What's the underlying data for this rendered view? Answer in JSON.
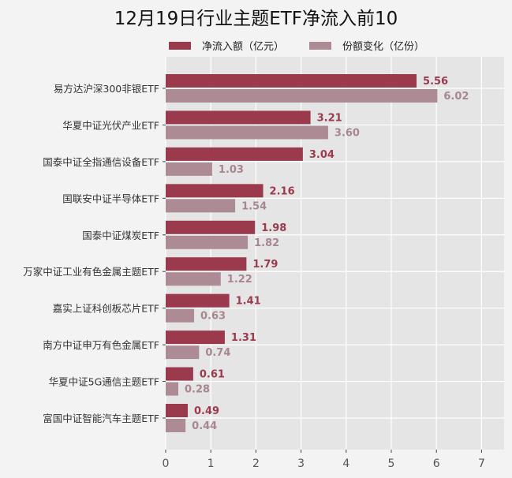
{
  "chart_data": {
    "type": "bar",
    "orientation": "horizontal",
    "title": "12月19日行业主题ETF净流入前10",
    "categories": [
      "易方达沪深300非银ETF",
      "华夏中证光伏产业ETF",
      "国泰中证全指通信设备ETF",
      "国联安中证半导体ETF",
      "国泰中证煤炭ETF",
      "万家中证工业有色金属主题ETF",
      "嘉实上证科创板芯片ETF",
      "南方中证申万有色金属ETF",
      "华夏中证5G通信主题ETF",
      "富国中证智能汽车主题ETF"
    ],
    "series": [
      {
        "name": "净流入额（亿元）",
        "color": "#9b3a4d",
        "values": [
          5.56,
          3.21,
          3.04,
          2.16,
          1.98,
          1.79,
          1.41,
          1.31,
          0.61,
          0.49
        ]
      },
      {
        "name": "份额变化（亿份）",
        "color": "#ad8b95",
        "values": [
          6.02,
          3.6,
          1.03,
          1.54,
          1.82,
          1.22,
          0.63,
          0.74,
          0.28,
          0.44
        ]
      }
    ],
    "xlim": [
      0,
      7.5
    ],
    "xticks": [
      0,
      1,
      2,
      3,
      4,
      5,
      6,
      7
    ],
    "grid": true,
    "legend": "top"
  }
}
